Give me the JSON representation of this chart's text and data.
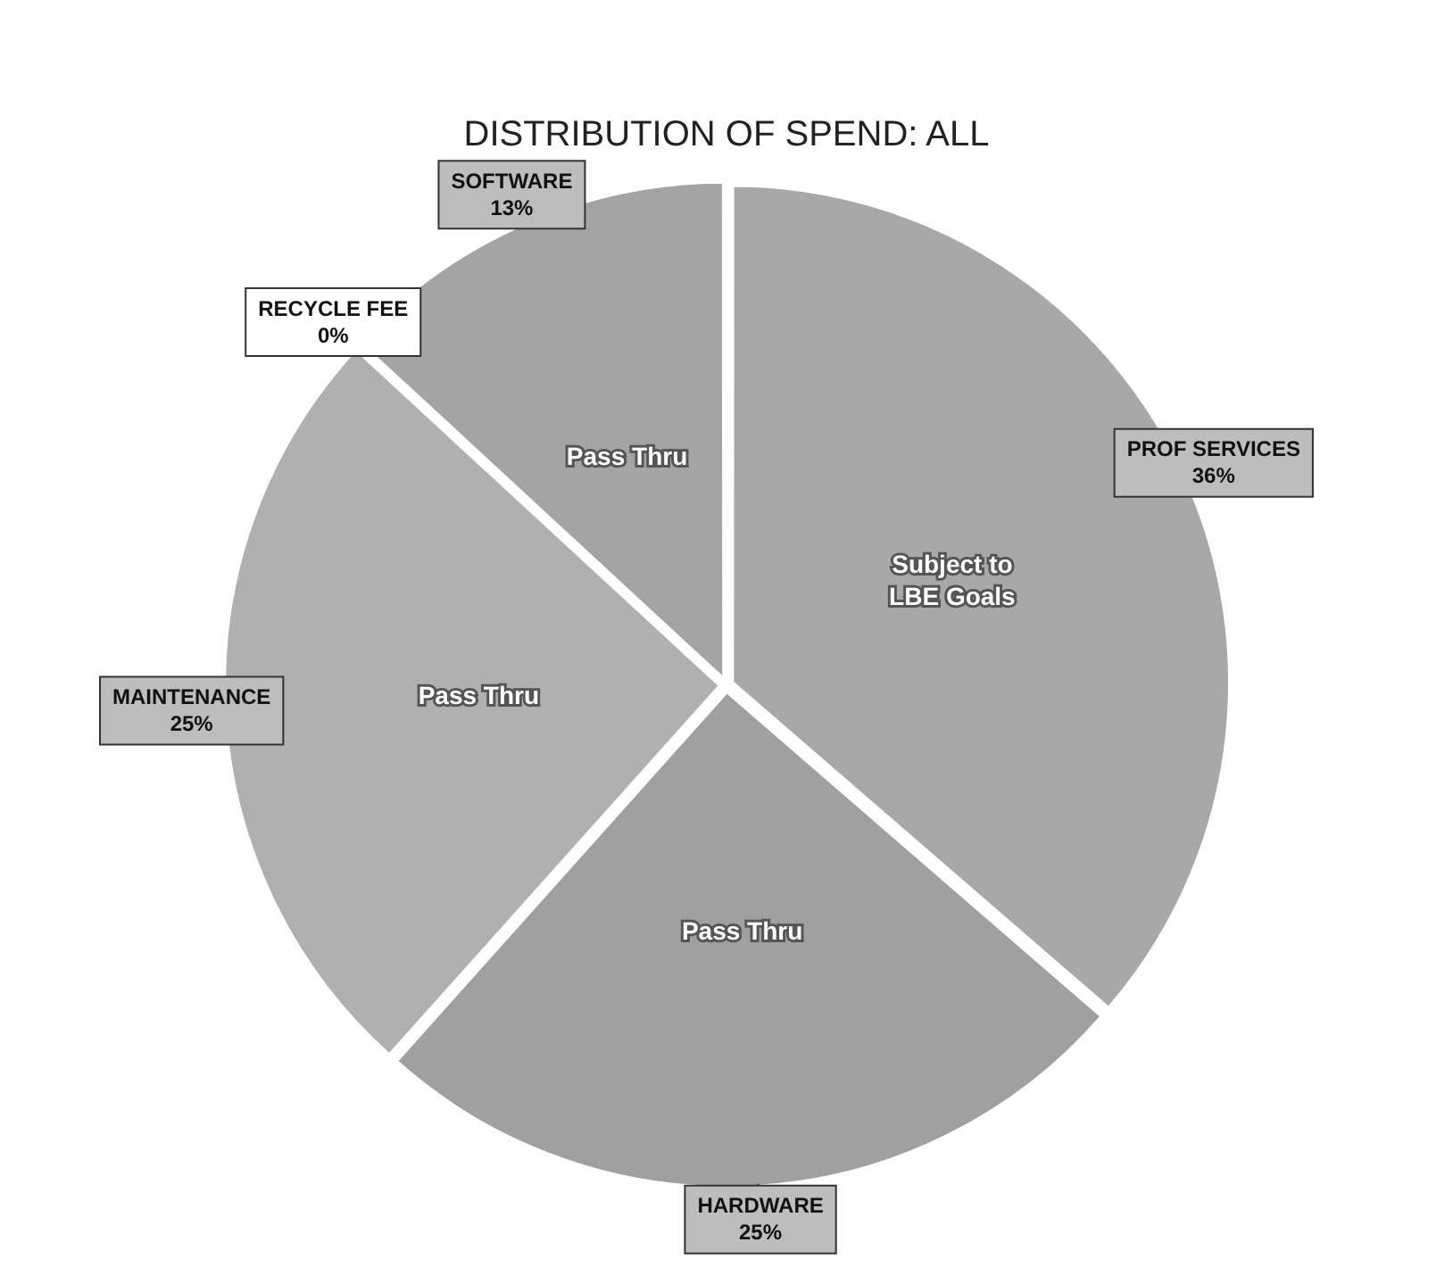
{
  "chart_data": {
    "type": "pie",
    "title": "DISTRIBUTION OF SPEND: ALL",
    "categories": [
      "PROF SERVICES",
      "HARDWARE",
      "MAINTENANCE",
      "RECYCLE FEE",
      "SOFTWARE"
    ],
    "values": [
      36,
      25,
      25,
      0,
      13
    ],
    "colors": [
      "#a8a8a8",
      "#a0a0a0",
      "#b0b0b0",
      "#a8a8a8",
      "#a4a4a4"
    ],
    "value_labels": [
      "36%",
      "25%",
      "25%",
      "0%",
      "13%"
    ],
    "legend": false,
    "annotations": [
      {
        "text": "Subject to LBE Goals",
        "x": "PROF SERVICES"
      },
      {
        "text": "Pass Thru",
        "x": "HARDWARE"
      },
      {
        "text": "Pass Thru",
        "x": "MAINTENANCE"
      },
      {
        "text": "Pass Thru",
        "x": "SOFTWARE"
      }
    ]
  }
}
